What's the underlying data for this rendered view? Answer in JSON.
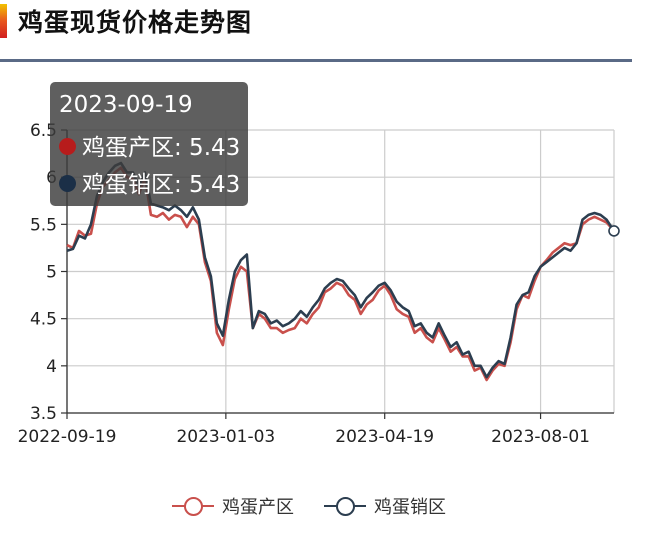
{
  "page": {
    "title": "鸡蛋现货价格走势图"
  },
  "tooltip": {
    "date": "2023-09-19",
    "rows": [
      {
        "label": "鸡蛋产区: 5.43",
        "color": "#b71c1c"
      },
      {
        "label": "鸡蛋销区: 5.43",
        "color": "#1b2f47"
      }
    ]
  },
  "chart_data": {
    "type": "line",
    "title": "鸡蛋现货价格走势图",
    "xlabel": "",
    "ylabel": "",
    "ylim": [
      3.5,
      6.5
    ],
    "yticks": [
      3.5,
      4,
      4.5,
      5,
      5.5,
      6,
      6.5
    ],
    "ytick_labels": [
      "3.5",
      "4",
      "4.5",
      "5",
      "5.5",
      "6",
      "6.5"
    ],
    "xlim": [
      "2022-09-19",
      "2023-09-19"
    ],
    "xticks": [
      "2022-09-19",
      "2023-01-03",
      "2023-04-19",
      "2023-08-01"
    ],
    "grid": true,
    "legend_position": "bottom",
    "series": [
      {
        "name": "鸡蛋产区",
        "color": "#c9504c",
        "points": [
          [
            "2022-09-19",
            5.28
          ],
          [
            "2022-09-23",
            5.25
          ],
          [
            "2022-09-27",
            5.43
          ],
          [
            "2022-10-01",
            5.38
          ],
          [
            "2022-10-05",
            5.4
          ],
          [
            "2022-10-09",
            5.72
          ],
          [
            "2022-10-13",
            5.9
          ],
          [
            "2022-10-17",
            5.97
          ],
          [
            "2022-10-21",
            6.05
          ],
          [
            "2022-10-25",
            6.1
          ],
          [
            "2022-10-29",
            6.0
          ],
          [
            "2022-11-02",
            5.98
          ],
          [
            "2022-11-06",
            5.82
          ],
          [
            "2022-11-10",
            6.0
          ],
          [
            "2022-11-14",
            5.6
          ],
          [
            "2022-11-18",
            5.58
          ],
          [
            "2022-11-22",
            5.62
          ],
          [
            "2022-11-26",
            5.55
          ],
          [
            "2022-11-30",
            5.6
          ],
          [
            "2022-12-04",
            5.58
          ],
          [
            "2022-12-08",
            5.47
          ],
          [
            "2022-12-12",
            5.58
          ],
          [
            "2022-12-16",
            5.5
          ],
          [
            "2022-12-20",
            5.1
          ],
          [
            "2022-12-24",
            4.9
          ],
          [
            "2022-12-28",
            4.35
          ],
          [
            "2023-01-01",
            4.22
          ],
          [
            "2023-01-05",
            4.6
          ],
          [
            "2023-01-09",
            4.92
          ],
          [
            "2023-01-13",
            5.05
          ],
          [
            "2023-01-17",
            5.0
          ],
          [
            "2023-01-21",
            4.4
          ],
          [
            "2023-01-25",
            4.55
          ],
          [
            "2023-01-29",
            4.5
          ],
          [
            "2023-02-02",
            4.4
          ],
          [
            "2023-02-06",
            4.4
          ],
          [
            "2023-02-10",
            4.35
          ],
          [
            "2023-02-14",
            4.38
          ],
          [
            "2023-02-18",
            4.4
          ],
          [
            "2023-02-22",
            4.5
          ],
          [
            "2023-02-26",
            4.45
          ],
          [
            "2023-03-02",
            4.55
          ],
          [
            "2023-03-06",
            4.62
          ],
          [
            "2023-03-10",
            4.78
          ],
          [
            "2023-03-14",
            4.82
          ],
          [
            "2023-03-18",
            4.88
          ],
          [
            "2023-03-22",
            4.85
          ],
          [
            "2023-03-26",
            4.75
          ],
          [
            "2023-03-30",
            4.7
          ],
          [
            "2023-04-03",
            4.55
          ],
          [
            "2023-04-07",
            4.65
          ],
          [
            "2023-04-11",
            4.7
          ],
          [
            "2023-04-15",
            4.8
          ],
          [
            "2023-04-19",
            4.85
          ],
          [
            "2023-04-23",
            4.75
          ],
          [
            "2023-04-27",
            4.6
          ],
          [
            "2023-05-01",
            4.55
          ],
          [
            "2023-05-05",
            4.52
          ],
          [
            "2023-05-09",
            4.35
          ],
          [
            "2023-05-13",
            4.4
          ],
          [
            "2023-05-17",
            4.3
          ],
          [
            "2023-05-21",
            4.25
          ],
          [
            "2023-05-25",
            4.4
          ],
          [
            "2023-05-29",
            4.28
          ],
          [
            "2023-06-02",
            4.15
          ],
          [
            "2023-06-06",
            4.2
          ],
          [
            "2023-06-10",
            4.1
          ],
          [
            "2023-06-14",
            4.1
          ],
          [
            "2023-06-18",
            3.95
          ],
          [
            "2023-06-22",
            3.98
          ],
          [
            "2023-06-26",
            3.85
          ],
          [
            "2023-06-30",
            3.95
          ],
          [
            "2023-07-04",
            4.02
          ],
          [
            "2023-07-08",
            4.0
          ],
          [
            "2023-07-12",
            4.25
          ],
          [
            "2023-07-16",
            4.6
          ],
          [
            "2023-07-20",
            4.75
          ],
          [
            "2023-07-24",
            4.72
          ],
          [
            "2023-07-28",
            4.9
          ],
          [
            "2023-08-01",
            5.05
          ],
          [
            "2023-08-05",
            5.12
          ],
          [
            "2023-08-09",
            5.2
          ],
          [
            "2023-08-13",
            5.25
          ],
          [
            "2023-08-17",
            5.3
          ],
          [
            "2023-08-21",
            5.28
          ],
          [
            "2023-08-25",
            5.3
          ],
          [
            "2023-08-29",
            5.5
          ],
          [
            "2023-09-02",
            5.55
          ],
          [
            "2023-09-06",
            5.58
          ],
          [
            "2023-09-10",
            5.55
          ],
          [
            "2023-09-14",
            5.52
          ],
          [
            "2023-09-19",
            5.43
          ]
        ]
      },
      {
        "name": "鸡蛋销区",
        "color": "#2c3e50",
        "points": [
          [
            "2022-09-19",
            5.22
          ],
          [
            "2022-09-23",
            5.24
          ],
          [
            "2022-09-27",
            5.38
          ],
          [
            "2022-10-01",
            5.35
          ],
          [
            "2022-10-05",
            5.5
          ],
          [
            "2022-10-09",
            5.8
          ],
          [
            "2022-10-13",
            5.95
          ],
          [
            "2022-10-17",
            6.05
          ],
          [
            "2022-10-21",
            6.12
          ],
          [
            "2022-10-25",
            6.15
          ],
          [
            "2022-10-29",
            6.05
          ],
          [
            "2022-11-02",
            6.05
          ],
          [
            "2022-11-06",
            5.9
          ],
          [
            "2022-11-10",
            6.05
          ],
          [
            "2022-11-14",
            5.72
          ],
          [
            "2022-11-18",
            5.7
          ],
          [
            "2022-11-22",
            5.68
          ],
          [
            "2022-11-26",
            5.65
          ],
          [
            "2022-11-30",
            5.7
          ],
          [
            "2022-12-04",
            5.65
          ],
          [
            "2022-12-08",
            5.58
          ],
          [
            "2022-12-12",
            5.68
          ],
          [
            "2022-12-16",
            5.55
          ],
          [
            "2022-12-20",
            5.15
          ],
          [
            "2022-12-24",
            4.95
          ],
          [
            "2022-12-28",
            4.45
          ],
          [
            "2023-01-01",
            4.32
          ],
          [
            "2023-01-05",
            4.7
          ],
          [
            "2023-01-09",
            5.0
          ],
          [
            "2023-01-13",
            5.12
          ],
          [
            "2023-01-17",
            5.18
          ],
          [
            "2023-01-21",
            4.4
          ],
          [
            "2023-01-25",
            4.58
          ],
          [
            "2023-01-29",
            4.55
          ],
          [
            "2023-02-02",
            4.45
          ],
          [
            "2023-02-06",
            4.48
          ],
          [
            "2023-02-10",
            4.42
          ],
          [
            "2023-02-14",
            4.45
          ],
          [
            "2023-02-18",
            4.5
          ],
          [
            "2023-02-22",
            4.58
          ],
          [
            "2023-02-26",
            4.52
          ],
          [
            "2023-03-02",
            4.62
          ],
          [
            "2023-03-06",
            4.7
          ],
          [
            "2023-03-10",
            4.82
          ],
          [
            "2023-03-14",
            4.88
          ],
          [
            "2023-03-18",
            4.92
          ],
          [
            "2023-03-22",
            4.9
          ],
          [
            "2023-03-26",
            4.82
          ],
          [
            "2023-03-30",
            4.75
          ],
          [
            "2023-04-03",
            4.62
          ],
          [
            "2023-04-07",
            4.72
          ],
          [
            "2023-04-11",
            4.78
          ],
          [
            "2023-04-15",
            4.85
          ],
          [
            "2023-04-19",
            4.88
          ],
          [
            "2023-04-23",
            4.8
          ],
          [
            "2023-04-27",
            4.68
          ],
          [
            "2023-05-01",
            4.62
          ],
          [
            "2023-05-05",
            4.58
          ],
          [
            "2023-05-09",
            4.42
          ],
          [
            "2023-05-13",
            4.45
          ],
          [
            "2023-05-17",
            4.35
          ],
          [
            "2023-05-21",
            4.3
          ],
          [
            "2023-05-25",
            4.45
          ],
          [
            "2023-05-29",
            4.32
          ],
          [
            "2023-06-02",
            4.2
          ],
          [
            "2023-06-06",
            4.25
          ],
          [
            "2023-06-10",
            4.12
          ],
          [
            "2023-06-14",
            4.15
          ],
          [
            "2023-06-18",
            4.0
          ],
          [
            "2023-06-22",
            4.0
          ],
          [
            "2023-06-26",
            3.88
          ],
          [
            "2023-06-30",
            3.98
          ],
          [
            "2023-07-04",
            4.05
          ],
          [
            "2023-07-08",
            4.02
          ],
          [
            "2023-07-12",
            4.3
          ],
          [
            "2023-07-16",
            4.65
          ],
          [
            "2023-07-20",
            4.75
          ],
          [
            "2023-07-24",
            4.78
          ],
          [
            "2023-07-28",
            4.95
          ],
          [
            "2023-08-01",
            5.05
          ],
          [
            "2023-08-05",
            5.1
          ],
          [
            "2023-08-09",
            5.15
          ],
          [
            "2023-08-13",
            5.2
          ],
          [
            "2023-08-17",
            5.25
          ],
          [
            "2023-08-21",
            5.22
          ],
          [
            "2023-08-25",
            5.3
          ],
          [
            "2023-08-29",
            5.55
          ],
          [
            "2023-09-02",
            5.6
          ],
          [
            "2023-09-06",
            5.62
          ],
          [
            "2023-09-10",
            5.6
          ],
          [
            "2023-09-14",
            5.55
          ],
          [
            "2023-09-19",
            5.43
          ]
        ]
      }
    ]
  }
}
